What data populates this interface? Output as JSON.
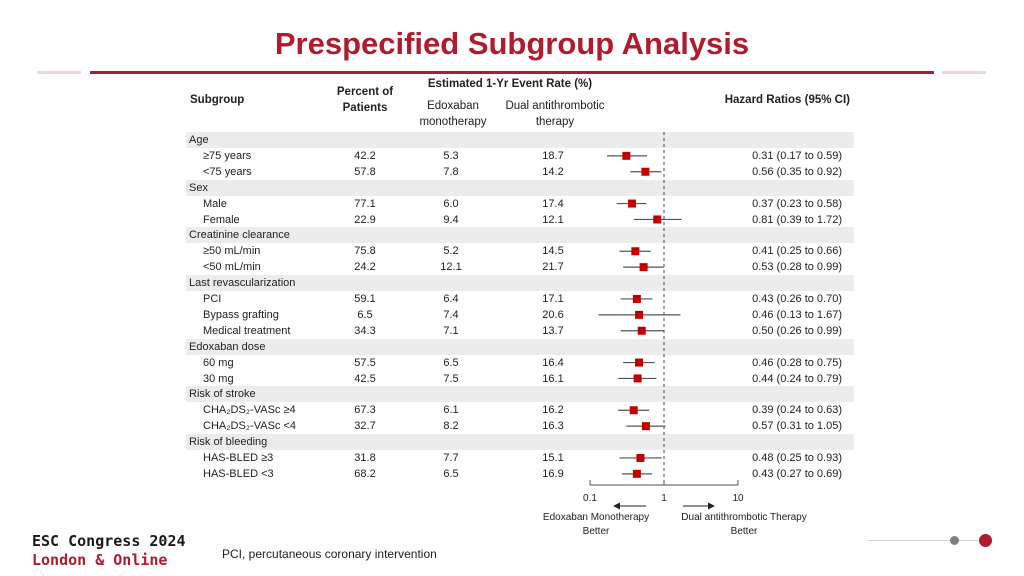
{
  "title": "Prespecified Subgroup Analysis",
  "headers": {
    "subgroup": "Subgroup",
    "percent": "Percent of Patients",
    "event_rate": "Estimated 1-Yr Event Rate (%)",
    "edoxaban": "Edoxaban monotherapy",
    "dat": "Dual antithrombotic therapy",
    "hr": "Hazard Ratios (95% CI)"
  },
  "axis": {
    "ticks": [
      "0.1",
      "1",
      "10"
    ],
    "left_label": "Edoxaban Monotherapy Better",
    "right_label": "Dual antithrombotic Therapy Better"
  },
  "footer": {
    "logo_line1": "ESC Congress 2024",
    "logo_line2": "London & Online",
    "footnote": "PCI, percutaneous coronary intervention"
  },
  "colors": {
    "accent": "#b01c2e",
    "marker": "#c00000",
    "logo_gray": "#7f7f7f"
  },
  "chart_data": {
    "type": "forest",
    "xscale": "log",
    "xlim": [
      0.1,
      10
    ],
    "reference": 1,
    "rows": [
      {
        "category": "Age"
      },
      {
        "label": "≥75 years",
        "percent": "42.2",
        "edoxaban": "5.3",
        "dat": "18.7",
        "hr": 0.31,
        "lo": 0.17,
        "hi": 0.59,
        "hr_text": "0.31 (0.17 to 0.59)"
      },
      {
        "label": "<75 years",
        "percent": "57.8",
        "edoxaban": "7.8",
        "dat": "14.2",
        "hr": 0.56,
        "lo": 0.35,
        "hi": 0.92,
        "hr_text": "0.56 (0.35 to 0.92)"
      },
      {
        "category": "Sex"
      },
      {
        "label": "Male",
        "percent": "77.1",
        "edoxaban": "6.0",
        "dat": "17.4",
        "hr": 0.37,
        "lo": 0.23,
        "hi": 0.58,
        "hr_text": "0.37 (0.23 to 0.58)"
      },
      {
        "label": "Female",
        "percent": "22.9",
        "edoxaban": "9.4",
        "dat": "12.1",
        "hr": 0.81,
        "lo": 0.39,
        "hi": 1.72,
        "hr_text": "0.81 (0.39 to 1.72)"
      },
      {
        "category": "Creatinine clearance"
      },
      {
        "label": "≥50 mL/min",
        "percent": "75.8",
        "edoxaban": "5.2",
        "dat": "14.5",
        "hr": 0.41,
        "lo": 0.25,
        "hi": 0.66,
        "hr_text": "0.41 (0.25 to 0.66)"
      },
      {
        "label": "<50 mL/min",
        "percent": "24.2",
        "edoxaban": "12.1",
        "dat": "21.7",
        "hr": 0.53,
        "lo": 0.28,
        "hi": 0.99,
        "hr_text": "0.53 (0.28 to 0.99)"
      },
      {
        "category": "Last revascularization"
      },
      {
        "label": "PCI",
        "percent": "59.1",
        "edoxaban": "6.4",
        "dat": "17.1",
        "hr": 0.43,
        "lo": 0.26,
        "hi": 0.7,
        "hr_text": "0.43 (0.26 to 0.70)"
      },
      {
        "label": "Bypass grafting",
        "percent": "6.5",
        "edoxaban": "7.4",
        "dat": "20.6",
        "hr": 0.46,
        "lo": 0.13,
        "hi": 1.67,
        "hr_text": "0.46 (0.13 to 1.67)"
      },
      {
        "label": "Medical treatment",
        "percent": "34.3",
        "edoxaban": "7.1",
        "dat": "13.7",
        "hr": 0.5,
        "lo": 0.26,
        "hi": 0.99,
        "hr_text": "0.50 (0.26 to 0.99)"
      },
      {
        "category": "Edoxaban dose"
      },
      {
        "label": "60 mg",
        "percent": "57.5",
        "edoxaban": "6.5",
        "dat": "16.4",
        "hr": 0.46,
        "lo": 0.28,
        "hi": 0.75,
        "hr_text": "0.46 (0.28 to 0.75)"
      },
      {
        "label": "30 mg",
        "percent": "42.5",
        "edoxaban": "7.5",
        "dat": "16.1",
        "hr": 0.44,
        "lo": 0.24,
        "hi": 0.79,
        "hr_text": "0.44 (0.24 to 0.79)"
      },
      {
        "category": "Risk of stroke"
      },
      {
        "label": "CHA₂DS₂-VASc ≥4",
        "percent": "67.3",
        "edoxaban": "6.1",
        "dat": "16.2",
        "hr": 0.39,
        "lo": 0.24,
        "hi": 0.63,
        "hr_text": "0.39 (0.24 to 0.63)"
      },
      {
        "label": "CHA₂DS₂-VASc <4",
        "percent": "32.7",
        "edoxaban": "8.2",
        "dat": "16.3",
        "hr": 0.57,
        "lo": 0.31,
        "hi": 1.05,
        "hr_text": "0.57 (0.31 to 1.05)"
      },
      {
        "category": "Risk of bleeding"
      },
      {
        "label": "HAS-BLED ≥3",
        "percent": "31.8",
        "edoxaban": "7.7",
        "dat": "15.1",
        "hr": 0.48,
        "lo": 0.25,
        "hi": 0.93,
        "hr_text": "0.48 (0.25 to 0.93)"
      },
      {
        "label": "HAS-BLED <3",
        "percent": "68.2",
        "edoxaban": "6.5",
        "dat": "16.9",
        "hr": 0.43,
        "lo": 0.27,
        "hi": 0.69,
        "hr_text": "0.43 (0.27 to 0.69)"
      }
    ]
  }
}
